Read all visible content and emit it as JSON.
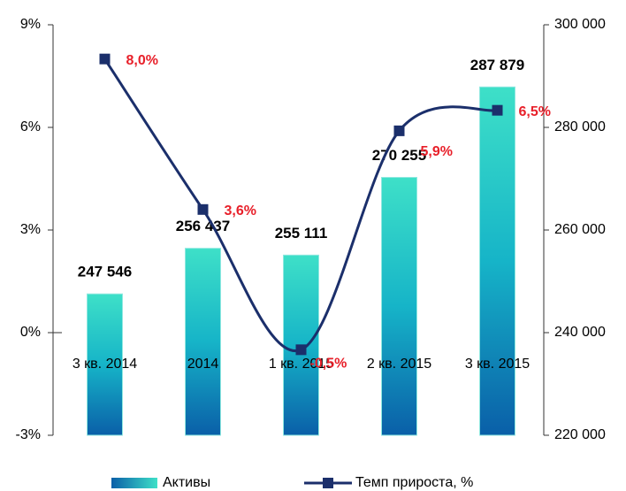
{
  "chart_data": {
    "type": "bar-line",
    "categories": [
      "3 кв. 2014",
      "2014",
      "1 кв. 2015",
      "2 кв. 2015",
      "3 кв. 2015"
    ],
    "series": [
      {
        "name": "Активы",
        "type": "bar",
        "axis": "y2",
        "color": "#1ec8c0",
        "values": [
          247546,
          256437,
          255111,
          270255,
          287879
        ],
        "value_labels": [
          "247 546",
          "256 437",
          "255 111",
          "270 255",
          "287 879"
        ]
      },
      {
        "name": "Темп прироста, %",
        "type": "line",
        "axis": "y",
        "color": "#1b2f6b",
        "values": [
          8.0,
          3.6,
          -0.5,
          5.9,
          6.5
        ],
        "value_labels": [
          "8,0%",
          "3,6%",
          "-0,5%",
          "5,9%",
          "6,5%"
        ]
      }
    ],
    "ylim": [
      -3,
      9
    ],
    "yticks": [
      {
        "value": 9,
        "label": "9%"
      },
      {
        "value": 6,
        "label": "6%"
      },
      {
        "value": 3,
        "label": "3%"
      },
      {
        "value": 0,
        "label": "0%"
      },
      {
        "value": -3,
        "label": "-3%"
      }
    ],
    "y2lim": [
      220000,
      300000
    ],
    "y2ticks": [
      {
        "value": 300000,
        "label": "300 000"
      },
      {
        "value": 280000,
        "label": "280 000"
      },
      {
        "value": 260000,
        "label": "260 000"
      },
      {
        "value": 240000,
        "label": "240 000"
      },
      {
        "value": 220000,
        "label": "220 000"
      }
    ],
    "legend": "bottom"
  }
}
